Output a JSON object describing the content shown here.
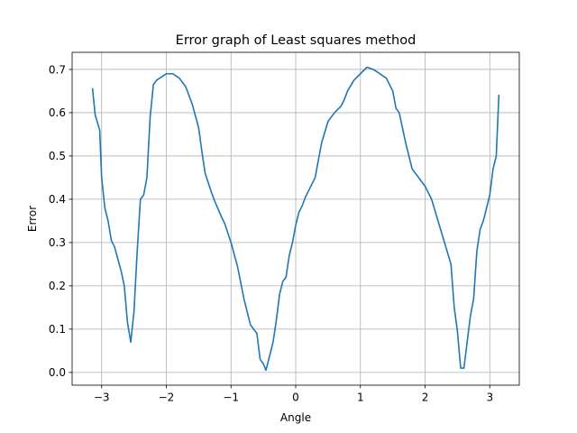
{
  "chart_data": {
    "type": "line",
    "title": "Error graph of Least squares method",
    "xlabel": "Angle",
    "ylabel": "Error",
    "xlim": [
      -3.456,
      3.456
    ],
    "ylim": [
      -0.0295,
      0.7395
    ],
    "xticks": [
      -3,
      -2,
      -1,
      0,
      1,
      2,
      3
    ],
    "xtick_labels": [
      "−3",
      "−2",
      "−1",
      "0",
      "1",
      "2",
      "3"
    ],
    "yticks": [
      0.0,
      0.1,
      0.2,
      0.3,
      0.4,
      0.5,
      0.6,
      0.7
    ],
    "ytick_labels": [
      "0.0",
      "0.1",
      "0.2",
      "0.3",
      "0.4",
      "0.5",
      "0.6",
      "0.7"
    ],
    "grid": true,
    "series": [
      {
        "color": "#1f77b4",
        "x": [
          -3.14,
          -3.1,
          -3.03,
          -3.0,
          -2.95,
          -2.9,
          -2.85,
          -2.8,
          -2.7,
          -2.65,
          -2.6,
          -2.55,
          -2.5,
          -2.45,
          -2.4,
          -2.35,
          -2.3,
          -2.25,
          -2.2,
          -2.15,
          -2.1,
          -2.0,
          -1.9,
          -1.8,
          -1.75,
          -1.7,
          -1.6,
          -1.5,
          -1.45,
          -1.4,
          -1.3,
          -1.25,
          -1.15,
          -1.1,
          -1.0,
          -0.9,
          -0.8,
          -0.7,
          -0.6,
          -0.55,
          -0.5,
          -0.46,
          -0.4,
          -0.35,
          -0.3,
          -0.25,
          -0.2,
          -0.15,
          -0.1,
          -0.05,
          0.0,
          0.05,
          0.1,
          0.15,
          0.2,
          0.3,
          0.4,
          0.5,
          0.6,
          0.7,
          0.75,
          0.8,
          0.9,
          1.0,
          1.1,
          1.2,
          1.3,
          1.4,
          1.5,
          1.55,
          1.6,
          1.7,
          1.8,
          1.9,
          2.0,
          2.1,
          2.2,
          2.3,
          2.4,
          2.45,
          2.5,
          2.52,
          2.55,
          2.6,
          2.65,
          2.7,
          2.75,
          2.8,
          2.85,
          2.9,
          2.95,
          3.0,
          3.05,
          3.1,
          3.14
        ],
        "y": [
          0.655,
          0.595,
          0.56,
          0.45,
          0.38,
          0.35,
          0.305,
          0.29,
          0.235,
          0.2,
          0.115,
          0.07,
          0.14,
          0.28,
          0.4,
          0.41,
          0.45,
          0.59,
          0.665,
          0.675,
          0.68,
          0.69,
          0.69,
          0.68,
          0.67,
          0.66,
          0.62,
          0.565,
          0.51,
          0.46,
          0.415,
          0.395,
          0.36,
          0.345,
          0.3,
          0.245,
          0.17,
          0.11,
          0.09,
          0.03,
          0.02,
          0.005,
          0.04,
          0.07,
          0.12,
          0.18,
          0.21,
          0.22,
          0.27,
          0.3,
          0.34,
          0.37,
          0.385,
          0.405,
          0.42,
          0.45,
          0.53,
          0.58,
          0.6,
          0.615,
          0.63,
          0.65,
          0.675,
          0.69,
          0.705,
          0.7,
          0.69,
          0.68,
          0.65,
          0.61,
          0.6,
          0.53,
          0.47,
          0.45,
          0.43,
          0.4,
          0.35,
          0.3,
          0.25,
          0.15,
          0.095,
          0.06,
          0.01,
          0.01,
          0.07,
          0.13,
          0.17,
          0.28,
          0.33,
          0.35,
          0.38,
          0.41,
          0.47,
          0.5,
          0.64
        ]
      }
    ]
  }
}
